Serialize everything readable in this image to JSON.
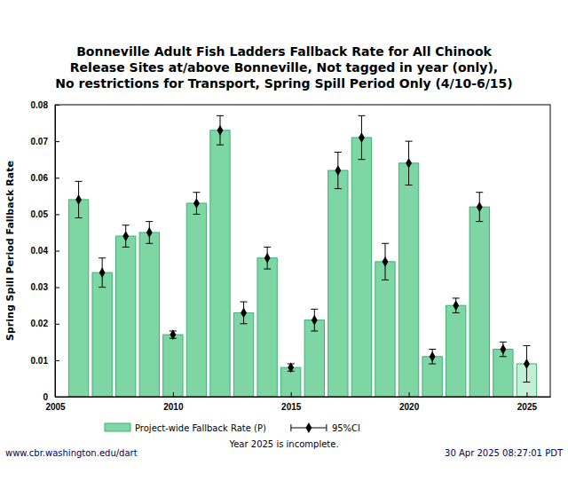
{
  "chart_data": {
    "type": "bar",
    "title": [
      "Bonneville Adult Fish Ladders Fallback Rate for All Chinook",
      "Release Sites at/above Bonneville, Not tagged in year (only),",
      "No restrictions for Transport, Spring Spill Period Only (4/10-6/15)"
    ],
    "y_label": "Spring Spill Period Fallback Rate",
    "annotations": [
      "Year 2025 is incomplete."
    ],
    "source": "www.cbr.washington.edu/dart",
    "timestamp": "30 Apr 2025 08:27:01 PDT",
    "x": [
      2006,
      2007,
      2008,
      2009,
      2010,
      2011,
      2012,
      2013,
      2014,
      2015,
      2016,
      2017,
      2018,
      2019,
      2020,
      2021,
      2022,
      2023,
      2024,
      2025
    ],
    "series": [
      {
        "name": "Project-wide Fallback Rate (P)",
        "type": "bar",
        "colors": [
          "#7fd6a5",
          "#7fd6a5",
          "#7fd6a5",
          "#7fd6a5",
          "#7fd6a5",
          "#7fd6a5",
          "#7fd6a5",
          "#7fd6a5",
          "#7fd6a5",
          "#7fd6a5",
          "#7fd6a5",
          "#7fd6a5",
          "#7fd6a5",
          "#7fd6a5",
          "#7fd6a5",
          "#7fd6a5",
          "#7fd6a5",
          "#7fd6a5",
          "#7fd6a5",
          "#c4eed6"
        ],
        "values": [
          0.054,
          0.034,
          0.044,
          0.045,
          0.017,
          0.053,
          0.073,
          0.023,
          0.038,
          0.008,
          0.021,
          0.062,
          0.071,
          0.037,
          0.064,
          0.011,
          0.025,
          0.052,
          0.013,
          0.009
        ]
      },
      {
        "name": "95%CI",
        "type": "scatter",
        "marker": "diamond",
        "color": "#000000",
        "values": [
          0.054,
          0.034,
          0.044,
          0.045,
          0.017,
          0.053,
          0.073,
          0.023,
          0.038,
          0.008,
          0.021,
          0.062,
          0.071,
          0.037,
          0.064,
          0.011,
          0.025,
          0.052,
          0.013,
          0.009
        ],
        "error": [
          0.005,
          0.004,
          0.003,
          0.003,
          0.001,
          0.003,
          0.004,
          0.003,
          0.003,
          0.001,
          0.003,
          0.005,
          0.006,
          0.005,
          0.006,
          0.002,
          0.002,
          0.004,
          0.002,
          0.005
        ]
      }
    ],
    "xlim": [
      2005,
      2026
    ],
    "xticks": [
      2005,
      2010,
      2015,
      2020,
      2025
    ],
    "ylim": [
      0,
      0.08
    ],
    "yticks": [
      0,
      0.01,
      0.02,
      0.03,
      0.04,
      0.05,
      0.06,
      0.07,
      0.08
    ],
    "grid": false,
    "legend": "bottom"
  }
}
